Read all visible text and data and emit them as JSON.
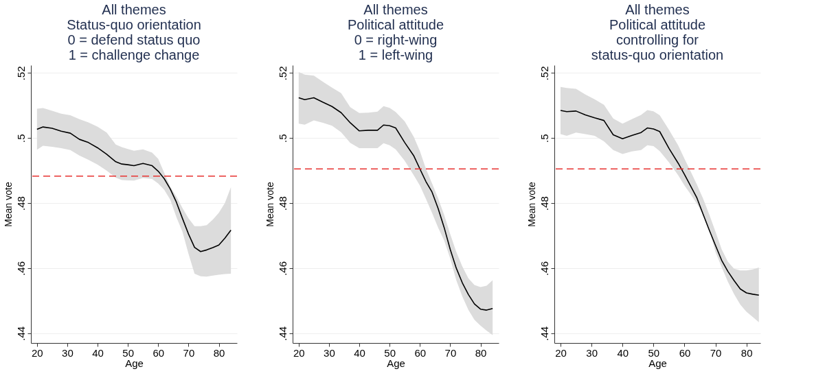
{
  "chart_data": [
    {
      "type": "line",
      "title": "All themes\nStatus-quo orientation\n0 = defend status quo\n1 = challenge change",
      "xlabel": "Age",
      "ylabel": "Mean vote",
      "xlim": [
        18,
        86
      ],
      "ylim": [
        0.437,
        0.5224
      ],
      "xticks": [
        20,
        30,
        40,
        50,
        60,
        70,
        80
      ],
      "yticks": [
        {
          "value": 0.44,
          "label": ".44"
        },
        {
          "value": 0.46,
          "label": ".46"
        },
        {
          "value": 0.48,
          "label": ".48"
        },
        {
          "value": 0.5,
          "label": ".5"
        },
        {
          "value": 0.52,
          "label": ".52"
        }
      ],
      "grid": "y",
      "line_style": "solid",
      "marker": "none",
      "ref_lines": [
        {
          "axis": "y",
          "value": 0.4883,
          "color": "#e8312f",
          "line_style": "dashed"
        }
      ],
      "series": [
        {
          "color": "#000000",
          "x": [
            20,
            22,
            25,
            28,
            31,
            34,
            37,
            40,
            43,
            46,
            48,
            50,
            52,
            55,
            58,
            60,
            62,
            64,
            66,
            68,
            70,
            72,
            74,
            76,
            78,
            80,
            82,
            84
          ],
          "values": [
            0.5027,
            0.5034,
            0.503,
            0.5021,
            0.5015,
            0.4996,
            0.4986,
            0.497,
            0.495,
            0.4927,
            0.492,
            0.4918,
            0.4915,
            0.4922,
            0.4915,
            0.4898,
            0.4875,
            0.4843,
            0.4803,
            0.4753,
            0.4705,
            0.4664,
            0.4651,
            0.4656,
            0.4663,
            0.4671,
            0.4692,
            0.4717
          ],
          "upper": [
            0.509,
            0.5092,
            0.5084,
            0.5075,
            0.507,
            0.5058,
            0.5048,
            0.5035,
            0.5017,
            0.498,
            0.4972,
            0.4966,
            0.4961,
            0.4965,
            0.4955,
            0.4936,
            0.4893,
            0.485,
            0.482,
            0.4785,
            0.4753,
            0.4729,
            0.4729,
            0.4732,
            0.4749,
            0.477,
            0.48,
            0.4849
          ],
          "lower": [
            0.4964,
            0.4976,
            0.4973,
            0.4969,
            0.4963,
            0.4946,
            0.4933,
            0.4918,
            0.49,
            0.4878,
            0.4871,
            0.487,
            0.4869,
            0.4877,
            0.4874,
            0.486,
            0.4841,
            0.481,
            0.4757,
            0.4712,
            0.4644,
            0.4583,
            0.4575,
            0.4574,
            0.4577,
            0.458,
            0.4582,
            0.4583
          ]
        }
      ]
    },
    {
      "type": "line",
      "title": "All themes\nPolitical attitude\n0 = right-wing\n1 = left-wing",
      "xlabel": "Age",
      "ylabel": "Mean vote",
      "xlim": [
        18,
        86
      ],
      "ylim": [
        0.437,
        0.5224
      ],
      "xticks": [
        20,
        30,
        40,
        50,
        60,
        70,
        80
      ],
      "yticks": [
        {
          "value": 0.44,
          "label": ".44"
        },
        {
          "value": 0.46,
          "label": ".46"
        },
        {
          "value": 0.48,
          "label": ".48"
        },
        {
          "value": 0.5,
          "label": ".5"
        },
        {
          "value": 0.52,
          "label": ".52"
        }
      ],
      "grid": "y",
      "line_style": "solid",
      "marker": "none",
      "ref_lines": [
        {
          "axis": "y",
          "value": 0.4905,
          "color": "#e8312f",
          "line_style": "dashed"
        }
      ],
      "series": [
        {
          "color": "#000000",
          "x": [
            20,
            22,
            25,
            28,
            31,
            34,
            37,
            40,
            43,
            46,
            48,
            50,
            52,
            55,
            58,
            60,
            62,
            64,
            66,
            68,
            70,
            72,
            74,
            76,
            78,
            80,
            82,
            84
          ],
          "values": [
            0.5124,
            0.5118,
            0.5124,
            0.511,
            0.5097,
            0.5078,
            0.5047,
            0.5022,
            0.5024,
            0.5024,
            0.504,
            0.5038,
            0.5031,
            0.4986,
            0.4945,
            0.4905,
            0.4866,
            0.4834,
            0.4784,
            0.4725,
            0.4658,
            0.46,
            0.4555,
            0.4519,
            0.449,
            0.4474,
            0.4471,
            0.4476
          ],
          "upper": [
            0.5203,
            0.5195,
            0.5192,
            0.5173,
            0.5155,
            0.5138,
            0.5095,
            0.5077,
            0.5078,
            0.5081,
            0.5098,
            0.5093,
            0.508,
            0.5051,
            0.5003,
            0.496,
            0.4905,
            0.4861,
            0.4815,
            0.4764,
            0.4705,
            0.465,
            0.4605,
            0.4569,
            0.4548,
            0.4542,
            0.4546,
            0.4563
          ],
          "lower": [
            0.5044,
            0.5041,
            0.5054,
            0.5047,
            0.5038,
            0.5018,
            0.4985,
            0.4969,
            0.4969,
            0.4969,
            0.4984,
            0.4978,
            0.4965,
            0.493,
            0.4885,
            0.4854,
            0.4813,
            0.477,
            0.4725,
            0.4685,
            0.463,
            0.4563,
            0.4513,
            0.4472,
            0.4441,
            0.4423,
            0.4408,
            0.4394
          ]
        }
      ]
    },
    {
      "type": "line",
      "title": "All themes\nPolitical attitude\ncontrolling for\nstatus-quo orientation",
      "xlabel": "Age",
      "ylabel": "Mean vote",
      "xlim": [
        18,
        84.5
      ],
      "ylim": [
        0.437,
        0.5224
      ],
      "xticks": [
        20,
        30,
        40,
        50,
        60,
        70,
        80
      ],
      "yticks": [
        {
          "value": 0.44,
          "label": ".44"
        },
        {
          "value": 0.46,
          "label": ".46"
        },
        {
          "value": 0.48,
          "label": ".48"
        },
        {
          "value": 0.5,
          "label": ".5"
        },
        {
          "value": 0.52,
          "label": ".52"
        }
      ],
      "grid": "y",
      "line_style": "solid",
      "marker": "none",
      "ref_lines": [
        {
          "axis": "y",
          "value": 0.4905,
          "color": "#e8312f",
          "line_style": "dashed"
        }
      ],
      "series": [
        {
          "color": "#000000",
          "x": [
            20,
            22,
            25,
            28,
            31,
            34,
            37,
            40,
            43,
            46,
            48,
            50,
            52,
            55,
            58,
            60,
            62,
            64,
            66,
            68,
            70,
            72,
            74,
            76,
            78,
            80,
            82,
            84
          ],
          "values": [
            0.5085,
            0.5081,
            0.5083,
            0.5071,
            0.5062,
            0.5054,
            0.501,
            0.4998,
            0.5008,
            0.5017,
            0.5031,
            0.5028,
            0.502,
            0.4968,
            0.4922,
            0.4888,
            0.4852,
            0.4816,
            0.4766,
            0.4717,
            0.467,
            0.4624,
            0.459,
            0.4562,
            0.4536,
            0.4524,
            0.452,
            0.4517
          ],
          "upper": [
            0.5157,
            0.5154,
            0.5151,
            0.5134,
            0.5119,
            0.5102,
            0.506,
            0.5044,
            0.5058,
            0.5071,
            0.5086,
            0.5082,
            0.507,
            0.5025,
            0.4977,
            0.4936,
            0.4897,
            0.4857,
            0.4814,
            0.4765,
            0.4712,
            0.4658,
            0.462,
            0.4598,
            0.4593,
            0.4593,
            0.4596,
            0.4602
          ],
          "lower": [
            0.5012,
            0.5007,
            0.5017,
            0.5012,
            0.5007,
            0.499,
            0.4963,
            0.4951,
            0.4959,
            0.4963,
            0.4978,
            0.4975,
            0.496,
            0.4925,
            0.4885,
            0.4854,
            0.4827,
            0.4798,
            0.4766,
            0.472,
            0.465,
            0.4603,
            0.4558,
            0.452,
            0.4488,
            0.4466,
            0.445,
            0.4434
          ]
        }
      ]
    }
  ]
}
